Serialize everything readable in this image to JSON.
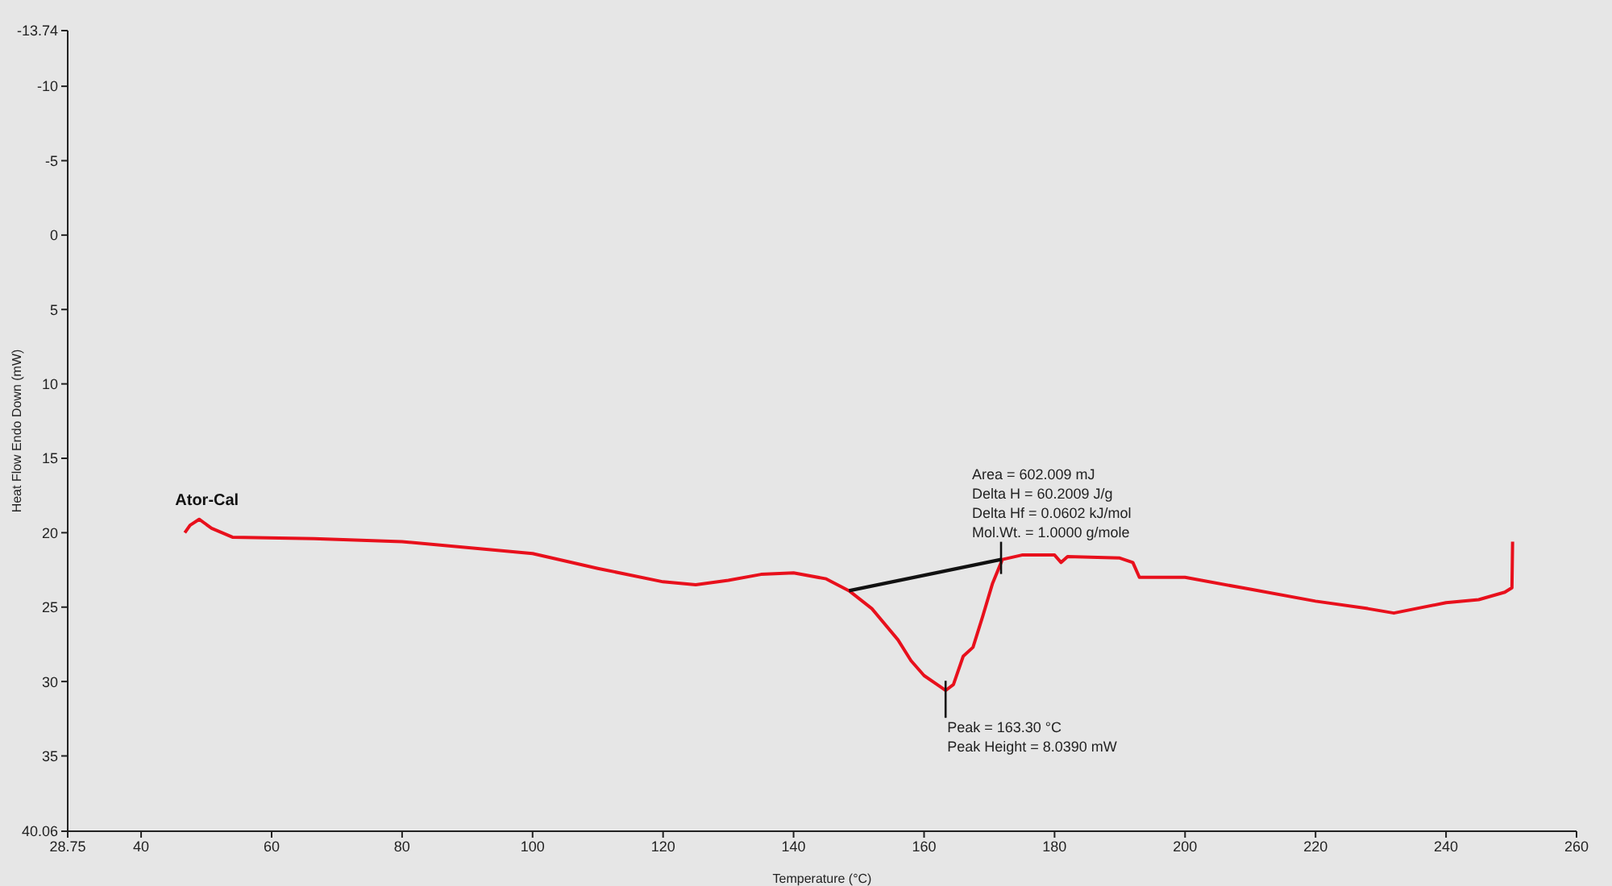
{
  "chart_data": {
    "type": "line",
    "xlabel": "Temperature (°C)",
    "ylabel": "Heat Flow Endo Down (mW)",
    "xlim": [
      28.75,
      260
    ],
    "xticks": [
      28.75,
      40,
      60,
      80,
      100,
      120,
      140,
      160,
      180,
      200,
      220,
      240,
      260
    ],
    "ylim": [
      40.06,
      -13.74
    ],
    "yticks": [
      -13.74,
      -10,
      -5,
      0,
      5,
      10,
      15,
      20,
      25,
      30,
      35,
      40.06
    ],
    "grid": false,
    "marker": "none",
    "line_style": "solid",
    "series": [
      {
        "name": "Ator-Cal",
        "color": "#e8101c",
        "x": [
          46.7,
          47.5,
          48.9,
          50.8,
          54,
          66.5,
          80,
          100,
          110,
          120,
          125,
          130,
          135,
          140,
          145,
          148.5,
          152,
          156,
          158,
          160,
          162,
          163.3,
          164.5,
          166,
          167.5,
          169,
          170.5,
          172,
          175,
          180,
          181,
          182,
          190,
          192,
          193,
          200,
          210,
          220,
          228,
          232,
          240,
          245,
          249,
          250.1,
          250.2
        ],
        "values": [
          20,
          19.5,
          19.1,
          19.7,
          20.3,
          20.4,
          20.6,
          21.4,
          22.4,
          23.3,
          23.5,
          23.2,
          22.8,
          22.7,
          23.1,
          23.9,
          25.1,
          27.2,
          28.6,
          29.6,
          30.2,
          30.6,
          30.2,
          28.3,
          27.7,
          25.6,
          23.4,
          21.8,
          21.5,
          21.5,
          22,
          21.6,
          21.7,
          22,
          23,
          23,
          23.8,
          24.6,
          25.1,
          25.4,
          24.7,
          24.5,
          24,
          23.7,
          20.6
        ]
      },
      {
        "color": "#111111",
        "x": [
          148.5,
          171.8
        ],
        "values": [
          23.9,
          21.8
        ]
      }
    ],
    "annotations": [
      {
        "text": "Area = 602.009 mJ\nDelta H = 60.2009 J/g\nDelta Hf = 0.0602 kJ/mol\nMol.Wt. = 1.0000 g/mole",
        "x": 171.8,
        "y": 21.8
      },
      {
        "text": "Peak = 163.30 °C\nPeak Height = 8.0390 mW",
        "x": 163.3,
        "y": 30.6
      }
    ]
  }
}
